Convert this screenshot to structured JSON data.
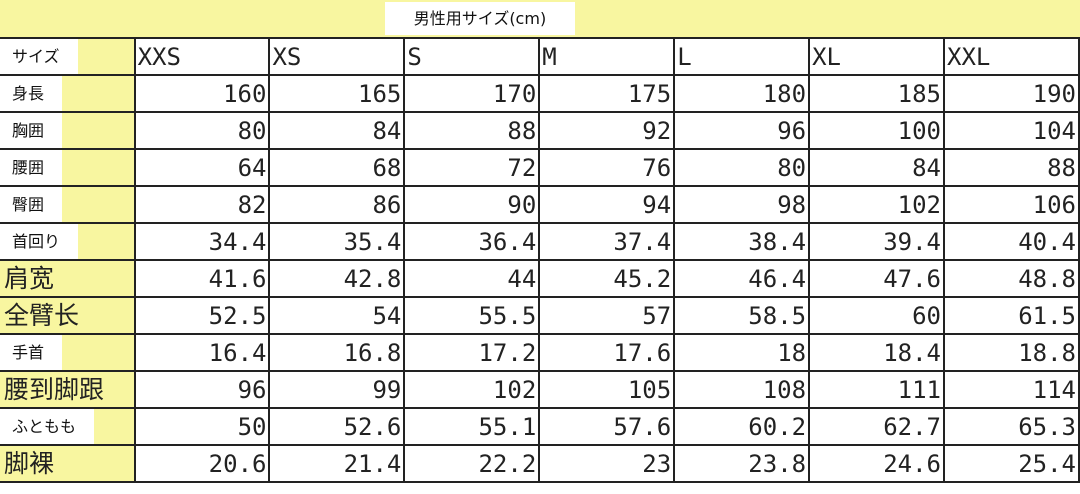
{
  "title": "男性用サイズ(cm)",
  "header_label": "サイズ",
  "sizes": [
    "XXS",
    "XS",
    "S",
    "M",
    "L",
    "XL",
    "XXL"
  ],
  "rows": [
    {
      "label": "身長",
      "style": "box",
      "values": [
        "160",
        "165",
        "170",
        "175",
        "180",
        "185",
        "190"
      ]
    },
    {
      "label": "胸囲",
      "style": "box",
      "values": [
        "80",
        "84",
        "88",
        "92",
        "96",
        "100",
        "104"
      ]
    },
    {
      "label": "腰囲",
      "style": "box",
      "values": [
        "64",
        "68",
        "72",
        "76",
        "80",
        "84",
        "88"
      ]
    },
    {
      "label": "臀囲",
      "style": "box",
      "values": [
        "82",
        "86",
        "90",
        "94",
        "98",
        "102",
        "106"
      ]
    },
    {
      "label": "首回り",
      "style": "box",
      "values": [
        "34.4",
        "35.4",
        "36.4",
        "37.4",
        "38.4",
        "39.4",
        "40.4"
      ]
    },
    {
      "label": "肩宽",
      "style": "big",
      "values": [
        "41.6",
        "42.8",
        "44",
        "45.2",
        "46.4",
        "47.6",
        "48.8"
      ]
    },
    {
      "label": "全臂长",
      "style": "big",
      "values": [
        "52.5",
        "54",
        "55.5",
        "57",
        "58.5",
        "60",
        "61.5"
      ]
    },
    {
      "label": "手首",
      "style": "box",
      "values": [
        "16.4",
        "16.8",
        "17.2",
        "17.6",
        "18",
        "18.4",
        "18.8"
      ]
    },
    {
      "label": "腰到脚跟",
      "style": "big",
      "values": [
        "96",
        "99",
        "102",
        "105",
        "108",
        "111",
        "114"
      ]
    },
    {
      "label": "ふともも",
      "style": "box",
      "values": [
        "50",
        "52.6",
        "55.1",
        "57.6",
        "60.2",
        "62.7",
        "65.3"
      ]
    },
    {
      "label": "脚裸",
      "style": "big",
      "values": [
        "20.6",
        "21.4",
        "22.2",
        "23",
        "23.8",
        "24.6",
        "25.4"
      ]
    }
  ],
  "colors": {
    "label_fill": "#f8f6a0",
    "grid": "#222222"
  }
}
